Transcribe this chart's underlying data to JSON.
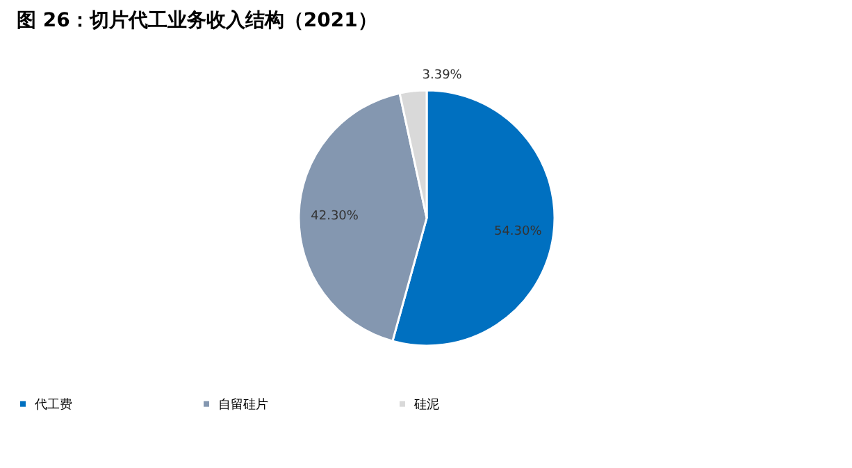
{
  "chart_data": {
    "type": "pie",
    "title": "图 26：切片代工业务收入结构（2021）",
    "categories": [
      "代工费",
      "自留硅片",
      "硅泥"
    ],
    "values": [
      54.3,
      42.3,
      3.39
    ],
    "colors": [
      "#0070c0",
      "#8497b0",
      "#d9d9d9"
    ],
    "value_labels": [
      "54.30%",
      "42.30%",
      "3.39%"
    ],
    "legend": "bottom"
  }
}
